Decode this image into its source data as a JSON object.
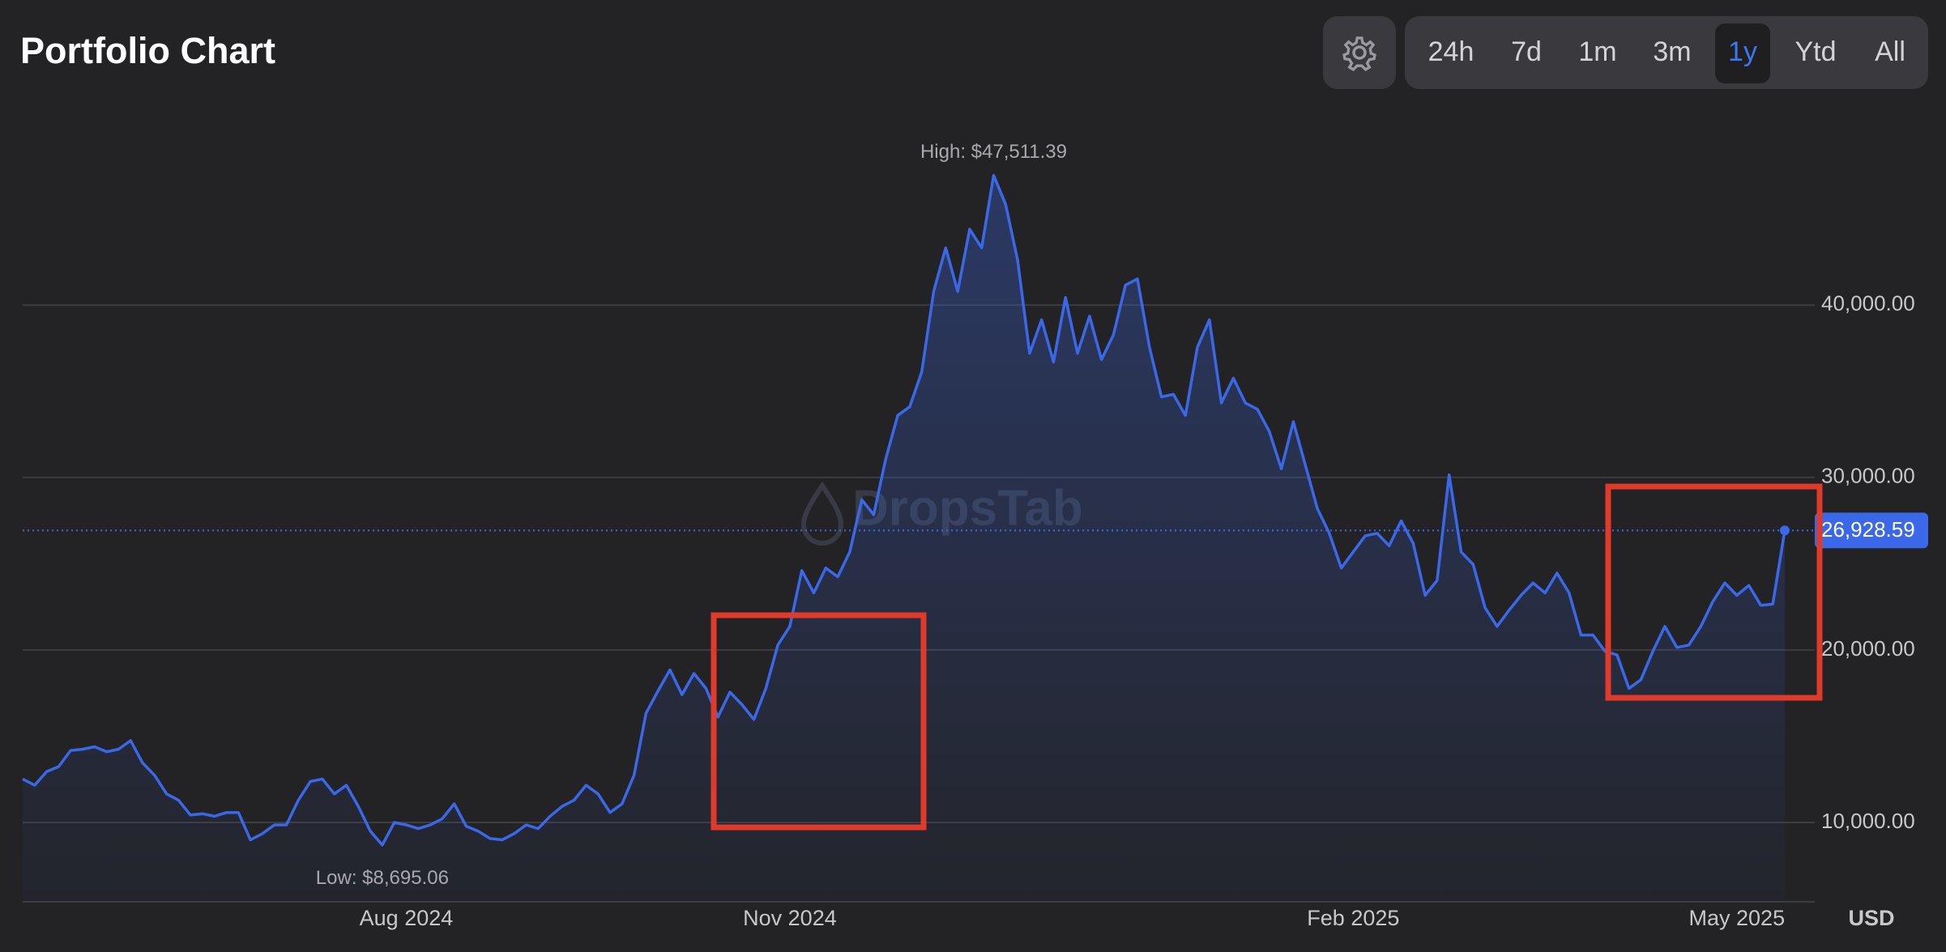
{
  "title": "Portfolio Chart",
  "ranges": [
    "24h",
    "7d",
    "1m",
    "3m",
    "1y",
    "Ytd",
    "All"
  ],
  "active_range": "1y",
  "chart_data": {
    "type": "line",
    "watermark": "DropsTab",
    "currency": "USD",
    "high_label": "High: $47,511.39",
    "low_label": "Low: $8,695.06",
    "color": "#3b68e8",
    "grid": true,
    "ylim": [
      5400,
      52000
    ],
    "yticks": [
      {
        "value": 10000,
        "label": "10,000.00"
      },
      {
        "value": 20000,
        "label": "20,000.00"
      },
      {
        "value": 30000,
        "label": "30,000.00"
      },
      {
        "value": 40000,
        "label": "40,000.00"
      }
    ],
    "categories": [
      null,
      null,
      null,
      null,
      null,
      null,
      null,
      null,
      null,
      null,
      null,
      null,
      null,
      null,
      null,
      null,
      null,
      null,
      null,
      null,
      null,
      null,
      null,
      null,
      null,
      null,
      null,
      null,
      null,
      null,
      null,
      null,
      "Aug 2024",
      null,
      null,
      null,
      null,
      null,
      null,
      null,
      null,
      null,
      null,
      null,
      null,
      null,
      null,
      null,
      null,
      null,
      null,
      null,
      null,
      null,
      null,
      null,
      null,
      null,
      null,
      null,
      null,
      null,
      null,
      null,
      "Nov 2024",
      null,
      null,
      null,
      null,
      null,
      null,
      null,
      null,
      null,
      null,
      null,
      null,
      null,
      null,
      null,
      null,
      null,
      null,
      null,
      null,
      null,
      null,
      null,
      null,
      null,
      null,
      null,
      null,
      null,
      null,
      null,
      null,
      null,
      null,
      null,
      null,
      null,
      null,
      null,
      null,
      null,
      null,
      null,
      null,
      null,
      null,
      "Feb 2025",
      null,
      null,
      null,
      null,
      null,
      null,
      null,
      null,
      null,
      null,
      null,
      null,
      null,
      null,
      null,
      null,
      null,
      null,
      null,
      null,
      null,
      null,
      null,
      null,
      null,
      null,
      null,
      null,
      null,
      null,
      null,
      "May 2025",
      null,
      null,
      null,
      null
    ],
    "values": [
      12518,
      12158,
      12950,
      13237,
      14173,
      14245,
      14388,
      14100,
      14245,
      14748,
      13453,
      12734,
      11655,
      11295,
      10432,
      10504,
      10360,
      10576,
      10576,
      8993,
      9353,
      9856,
      9856,
      11295,
      12374,
      12518,
      11655,
      12158,
      10935,
      9496,
      8695.06,
      10000,
      9856,
      9640,
      9856,
      10216,
      11079,
      9784,
      9496,
      9065,
      8993,
      9353,
      9856,
      9640,
      10360,
      10935,
      11295,
      12158,
      11655,
      10576,
      11079,
      12734,
      16331,
      17626,
      18849,
      17410,
      18633,
      17770,
      16115,
      17554,
      16834,
      15971,
      17770,
      20288,
      21367,
      24604,
      23309,
      24748,
      24244,
      25683,
      28704,
      27841,
      31078,
      33596,
      34100,
      36114,
      40790,
      43308,
      40790,
      44388,
      43308,
      47511.39,
      45826,
      42590,
      37197,
      39139,
      36690,
      40430,
      37197,
      39354,
      36834,
      38273,
      41150,
      41510,
      37555,
      34676,
      34820,
      33596,
      37555,
      39139,
      34316,
      35755,
      34316,
      33956,
      32661,
      30503,
      33236,
      30719,
      28201,
      26762,
      24748,
      25683,
      26618,
      26762,
      26043,
      27482,
      26187,
      23165,
      24029,
      30150,
      25683,
      24964,
      22446,
      21367,
      22302,
      23165,
      23884,
      23309,
      24460,
      23309,
      20863,
      20863,
      19928,
      19712,
      17770,
      18273,
      19928,
      21367,
      20144,
      20288,
      21367,
      22806,
      23884,
      23165,
      23740,
      22590,
      22662,
      26928.59
    ],
    "value_labels": [
      null,
      null,
      null,
      null,
      null,
      null,
      null,
      null,
      null,
      null,
      null,
      null,
      null,
      null,
      null,
      null,
      null,
      null,
      null,
      null,
      null,
      null,
      null,
      null,
      null,
      null,
      null,
      null,
      null,
      null,
      null,
      null,
      null,
      null,
      null,
      null,
      null,
      null,
      null,
      null,
      null,
      null,
      null,
      null,
      null,
      null,
      null,
      null,
      null,
      null,
      null,
      null,
      null,
      null,
      null,
      null,
      null,
      null,
      null,
      null,
      null,
      null,
      null,
      null,
      null,
      null,
      null,
      null,
      null,
      null,
      null,
      null,
      null,
      null,
      null,
      null,
      null,
      null,
      null,
      null,
      null,
      null,
      null,
      null,
      null,
      null,
      null,
      null,
      null,
      null,
      null,
      null,
      null,
      null,
      null,
      null,
      null,
      null,
      null,
      null,
      null,
      null,
      null,
      null,
      null,
      null,
      null,
      null,
      null,
      null,
      null,
      null,
      null,
      null,
      null,
      null,
      null,
      null,
      null,
      null,
      null,
      null,
      null,
      null,
      null,
      null,
      null,
      null,
      null,
      null,
      null,
      null,
      null,
      null,
      null,
      null,
      null,
      null,
      null,
      null,
      null,
      null,
      null,
      null,
      null,
      null,
      null,
      "26,928.59"
    ]
  }
}
